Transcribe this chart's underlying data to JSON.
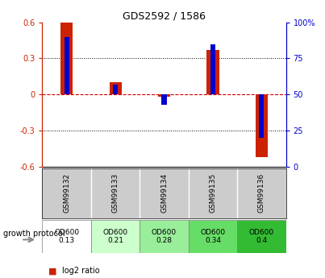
{
  "title": "GDS2592 / 1586",
  "samples": [
    "GSM99132",
    "GSM99133",
    "GSM99134",
    "GSM99135",
    "GSM99136"
  ],
  "log2_ratio": [
    0.6,
    0.1,
    -0.02,
    0.37,
    -0.52
  ],
  "percentile_rank": [
    90,
    57,
    43,
    85,
    20
  ],
  "protocol_label": "growth protocol",
  "protocol_values": [
    "OD600\n0.13",
    "OD600\n0.21",
    "OD600\n0.28",
    "OD600\n0.34",
    "OD600\n0.4"
  ],
  "proto_colors": [
    "#ffffff",
    "#ccffcc",
    "#99ee99",
    "#66dd66",
    "#33bb33"
  ],
  "ylim_left": [
    -0.6,
    0.6
  ],
  "ylim_right": [
    0,
    100
  ],
  "red_bar_width": 0.25,
  "blue_bar_width": 0.1,
  "red_color": "#cc2200",
  "blue_color": "#0000cc",
  "zero_line_color": "#cc0000",
  "bg_color": "#ffffff"
}
